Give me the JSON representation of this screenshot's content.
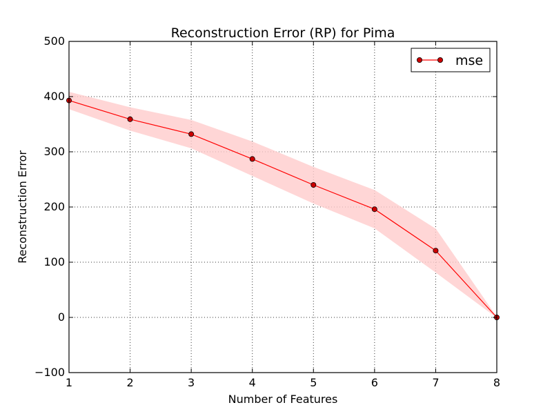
{
  "chart_data": {
    "type": "line",
    "title": "Reconstruction Error (RP) for Pima",
    "xlabel": "Number of Features",
    "ylabel": "Reconstruction Error",
    "xlim": [
      1,
      8
    ],
    "ylim": [
      -100,
      500
    ],
    "x_ticks": [
      "1",
      "2",
      "3",
      "4",
      "5",
      "6",
      "7",
      "8"
    ],
    "y_ticks": [
      "−100",
      "0",
      "100",
      "200",
      "300",
      "400",
      "500"
    ],
    "grid": true,
    "legend_position": "top-right",
    "series": [
      {
        "name": "mse",
        "color": "#ff0000",
        "band_color": "#ffcccc",
        "x": [
          1,
          2,
          3,
          4,
          5,
          6,
          7,
          8
        ],
        "values": [
          393,
          359,
          332,
          287,
          240,
          196,
          121,
          0
        ],
        "band_lower": [
          378,
          339,
          307,
          257,
          207,
          162,
          82,
          0
        ],
        "band_upper": [
          408,
          380,
          357,
          318,
          272,
          230,
          160,
          0
        ]
      }
    ]
  }
}
